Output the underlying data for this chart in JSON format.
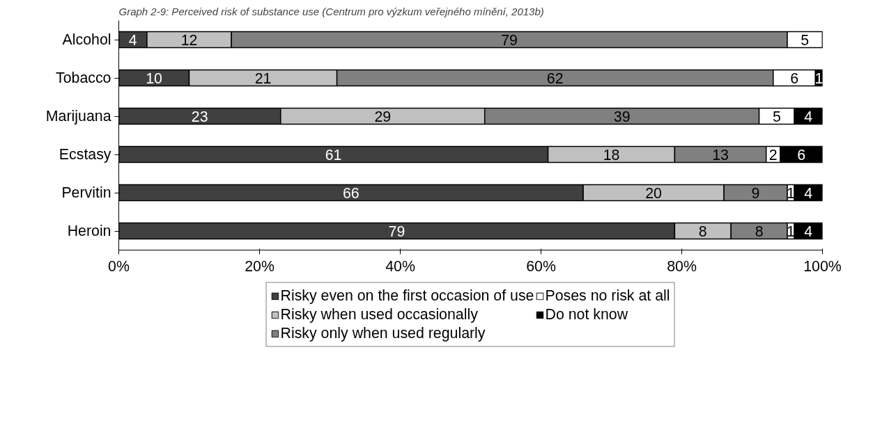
{
  "chart_data": {
    "type": "bar",
    "orientation": "horizontal",
    "stacked": true,
    "title": "Graph 2-9: Perceived risk of substance use (Centrum pro výzkum veřejného mínění, 2013b)",
    "categories": [
      "Alcohol",
      "Tobacco",
      "Marijuana",
      "Ecstasy",
      "Pervitin",
      "Heroin"
    ],
    "series": [
      {
        "name": "Risky even on the first occasion of use",
        "color": "#404040",
        "values": [
          4,
          10,
          23,
          61,
          66,
          79
        ],
        "value_labels": [
          "4",
          "10",
          "23",
          "61",
          "66",
          "79"
        ]
      },
      {
        "name": "Risky when used occasionally",
        "color": "#c0c0c0",
        "values": [
          12,
          21,
          29,
          18,
          20,
          8
        ],
        "value_labels": [
          "12",
          "21",
          "29",
          "18",
          "20",
          "8"
        ]
      },
      {
        "name": "Risky only when used regularly",
        "color": "#808080",
        "values": [
          79,
          62,
          39,
          13,
          9,
          8
        ],
        "value_labels": [
          "79",
          "62",
          "39",
          "13",
          "9",
          "8"
        ]
      },
      {
        "name": "Poses no risk at all",
        "color": "#ffffff",
        "values": [
          5,
          6,
          5,
          2,
          1,
          1
        ],
        "value_labels": [
          "5",
          "6",
          "5",
          "2",
          "1",
          "1"
        ]
      },
      {
        "name": "Do not know",
        "color": "#000000",
        "values": [
          0,
          1,
          4,
          6,
          4,
          4
        ],
        "value_labels": [
          null,
          "1",
          "4",
          "6",
          "4",
          "4"
        ]
      }
    ],
    "xlim": [
      0,
      100
    ],
    "xticks": [
      {
        "value": 0,
        "label": "0%"
      },
      {
        "value": 20,
        "label": "20%"
      },
      {
        "value": 40,
        "label": "40%"
      },
      {
        "value": 60,
        "label": "60%"
      },
      {
        "value": 80,
        "label": "80%"
      },
      {
        "value": 100,
        "label": "100%"
      }
    ],
    "legend": "bottom",
    "grid": false
  }
}
